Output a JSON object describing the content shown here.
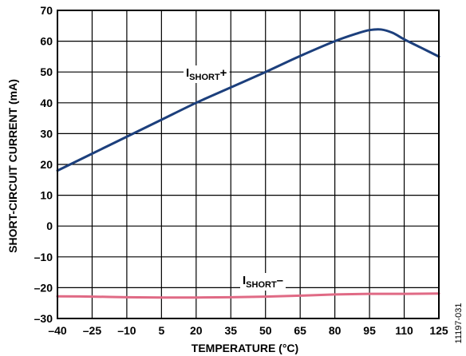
{
  "chart_data": {
    "type": "line",
    "xlabel": "TEMPERATURE (°C)",
    "ylabel": "SHORT-CIRCUIT CURRENT (mA)",
    "xlim": [
      -40,
      125
    ],
    "ylim": [
      -30,
      70
    ],
    "xticks": [
      "–40",
      "–25",
      "–10",
      "5",
      "20",
      "35",
      "50",
      "65",
      "80",
      "95",
      "110",
      "125"
    ],
    "yticks": [
      "70",
      "60",
      "50",
      "40",
      "30",
      "20",
      "10",
      "0",
      "–10",
      "–20",
      "–30"
    ],
    "grid": true,
    "series": [
      {
        "name": "I",
        "name_sub": "SHORT",
        "name_suffix": "+",
        "color": "#1c3f7c",
        "x": [
          -40,
          -25,
          -10,
          5,
          20,
          35,
          50,
          65,
          80,
          90,
          95,
          100,
          105,
          110,
          117,
          125
        ],
        "y": [
          18,
          23.5,
          29,
          34.5,
          40,
          45,
          50,
          55.2,
          60,
          62.6,
          63.6,
          63.8,
          62.7,
          60.6,
          58,
          55
        ]
      },
      {
        "name": "I",
        "name_sub": "SHORT",
        "name_suffix": "–",
        "color": "#e06a85",
        "x": [
          -40,
          -25,
          -10,
          5,
          20,
          35,
          50,
          65,
          80,
          95,
          110,
          125
        ],
        "y": [
          -22.8,
          -22.9,
          -23.1,
          -23.2,
          -23.2,
          -23.1,
          -22.9,
          -22.6,
          -22.2,
          -22.0,
          -22.0,
          -21.9
        ]
      }
    ],
    "figure_id": "11197-031"
  }
}
